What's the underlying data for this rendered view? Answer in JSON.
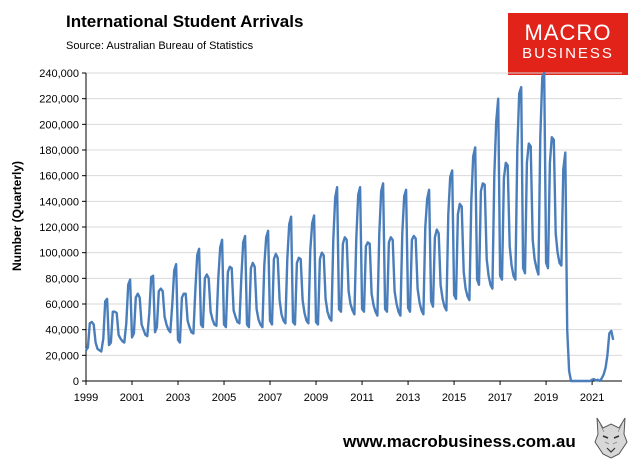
{
  "header": {
    "title": "International Student Arrivals",
    "subtitle": "Source: Australian Bureau of Statistics"
  },
  "logo": {
    "line1": "MACRO",
    "line2": "BUSINESS",
    "background": "#e2231a"
  },
  "footer": {
    "url": "www.macrobusiness.com.au"
  },
  "chart_data": {
    "type": "line",
    "title": "International Student Arrivals",
    "ylabel": "Number (Quarterly)",
    "xlabel": "",
    "ylim": [
      0,
      240000
    ],
    "xlim": [
      1999,
      2022.3
    ],
    "y_ticks": [
      0,
      20000,
      40000,
      60000,
      80000,
      100000,
      120000,
      140000,
      160000,
      180000,
      200000,
      220000,
      240000
    ],
    "y_tick_labels": [
      "0",
      "20,000",
      "40,000",
      "60,000",
      "80,000",
      "100,000",
      "120,000",
      "140,000",
      "160,000",
      "180,000",
      "200,000",
      "220,000",
      "240,000"
    ],
    "x_ticks": [
      1999,
      2001,
      2003,
      2005,
      2007,
      2009,
      2011,
      2013,
      2015,
      2017,
      2019,
      2021
    ],
    "x_tick_labels": [
      "1999",
      "2001",
      "2003",
      "2005",
      "2007",
      "2009",
      "2011",
      "2013",
      "2015",
      "2017",
      "2019",
      "2021"
    ],
    "grid": true,
    "color": "#4a7ebb",
    "series": [
      {
        "frequency": "monthly",
        "start": "1999-01",
        "values": [
          24000,
          26000,
          45000,
          46000,
          44000,
          30000,
          25000,
          24000,
          23000,
          33000,
          62000,
          64000,
          28000,
          30000,
          54000,
          54000,
          53000,
          36000,
          33000,
          31000,
          30000,
          45000,
          75000,
          79000,
          34000,
          37000,
          65000,
          68000,
          65000,
          44000,
          40000,
          36000,
          35000,
          53000,
          81000,
          82000,
          38000,
          42000,
          70000,
          72000,
          70000,
          50000,
          44000,
          40000,
          38000,
          60000,
          86000,
          91000,
          32000,
          30000,
          65000,
          68000,
          68000,
          47000,
          42000,
          38000,
          37000,
          70000,
          98000,
          103000,
          44000,
          42000,
          80000,
          83000,
          80000,
          54000,
          48000,
          44000,
          43000,
          80000,
          104000,
          110000,
          44000,
          42000,
          85000,
          89000,
          88000,
          55000,
          50000,
          46000,
          45000,
          80000,
          108000,
          113000,
          44000,
          42000,
          88000,
          92000,
          89000,
          56000,
          48000,
          44000,
          42000,
          90000,
          112000,
          117000,
          47000,
          44000,
          95000,
          99000,
          96000,
          63000,
          52000,
          47000,
          45000,
          95000,
          122000,
          128000,
          46000,
          44000,
          92000,
          96000,
          95000,
          63000,
          53000,
          47000,
          45000,
          102000,
          123000,
          129000,
          46000,
          44000,
          95000,
          100000,
          98000,
          64000,
          54000,
          49000,
          47000,
          110000,
          143000,
          151000,
          56000,
          54000,
          107000,
          112000,
          110000,
          70000,
          60000,
          55000,
          52000,
          111000,
          145000,
          151000,
          56000,
          54000,
          105000,
          108000,
          107000,
          68000,
          59000,
          54000,
          51000,
          115000,
          148000,
          154000,
          56000,
          54000,
          108000,
          112000,
          110000,
          70000,
          60000,
          54000,
          51000,
          115000,
          144000,
          149000,
          57000,
          54000,
          110000,
          113000,
          111000,
          72000,
          61000,
          55000,
          52000,
          120000,
          142000,
          149000,
          62000,
          58000,
          112000,
          118000,
          115000,
          75000,
          64000,
          58000,
          55000,
          130000,
          159000,
          164000,
          67000,
          64000,
          130000,
          138000,
          136000,
          85000,
          72000,
          66000,
          63000,
          140000,
          175000,
          182000,
          79000,
          75000,
          148000,
          154000,
          153000,
          95000,
          82000,
          75000,
          72000,
          160000,
          202000,
          220000,
          82000,
          79000,
          158000,
          170000,
          168000,
          105000,
          90000,
          82000,
          79000,
          180000,
          224000,
          229000,
          88000,
          84000,
          170000,
          185000,
          183000,
          110000,
          95000,
          88000,
          83000,
          190000,
          237000,
          240000,
          92000,
          88000,
          170000,
          190000,
          188000,
          115000,
          100000,
          92000,
          90000,
          165000,
          178000,
          40000,
          8000,
          0,
          0,
          0,
          0,
          0,
          0,
          0,
          0,
          0,
          0,
          0,
          1000,
          1500,
          500,
          1000,
          0,
          2000,
          5000,
          10000,
          20000,
          37000,
          39000,
          32000
        ]
      }
    ]
  }
}
